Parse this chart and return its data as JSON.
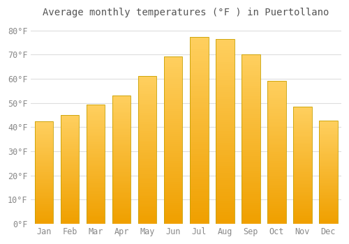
{
  "months": [
    "Jan",
    "Feb",
    "Mar",
    "Apr",
    "May",
    "Jun",
    "Jul",
    "Aug",
    "Sep",
    "Oct",
    "Nov",
    "Dec"
  ],
  "values": [
    42.5,
    45.0,
    49.2,
    53.2,
    61.2,
    69.3,
    77.2,
    76.5,
    70.2,
    59.2,
    48.6,
    42.6
  ],
  "bar_color_bright": "#FFD060",
  "bar_color_dark": "#F0A000",
  "bar_border_color": "#C8A000",
  "title": "Average monthly temperatures (°F ) in Puertollano",
  "ylabel_ticks": [
    "0°F",
    "10°F",
    "20°F",
    "30°F",
    "40°F",
    "50°F",
    "60°F",
    "70°F",
    "80°F"
  ],
  "ytick_values": [
    0,
    10,
    20,
    30,
    40,
    50,
    60,
    70,
    80
  ],
  "ylim": [
    0,
    83
  ],
  "background_color": "#FFFFFF",
  "grid_color": "#DDDDDD",
  "title_fontsize": 10,
  "tick_fontsize": 8.5,
  "bar_width": 0.72
}
